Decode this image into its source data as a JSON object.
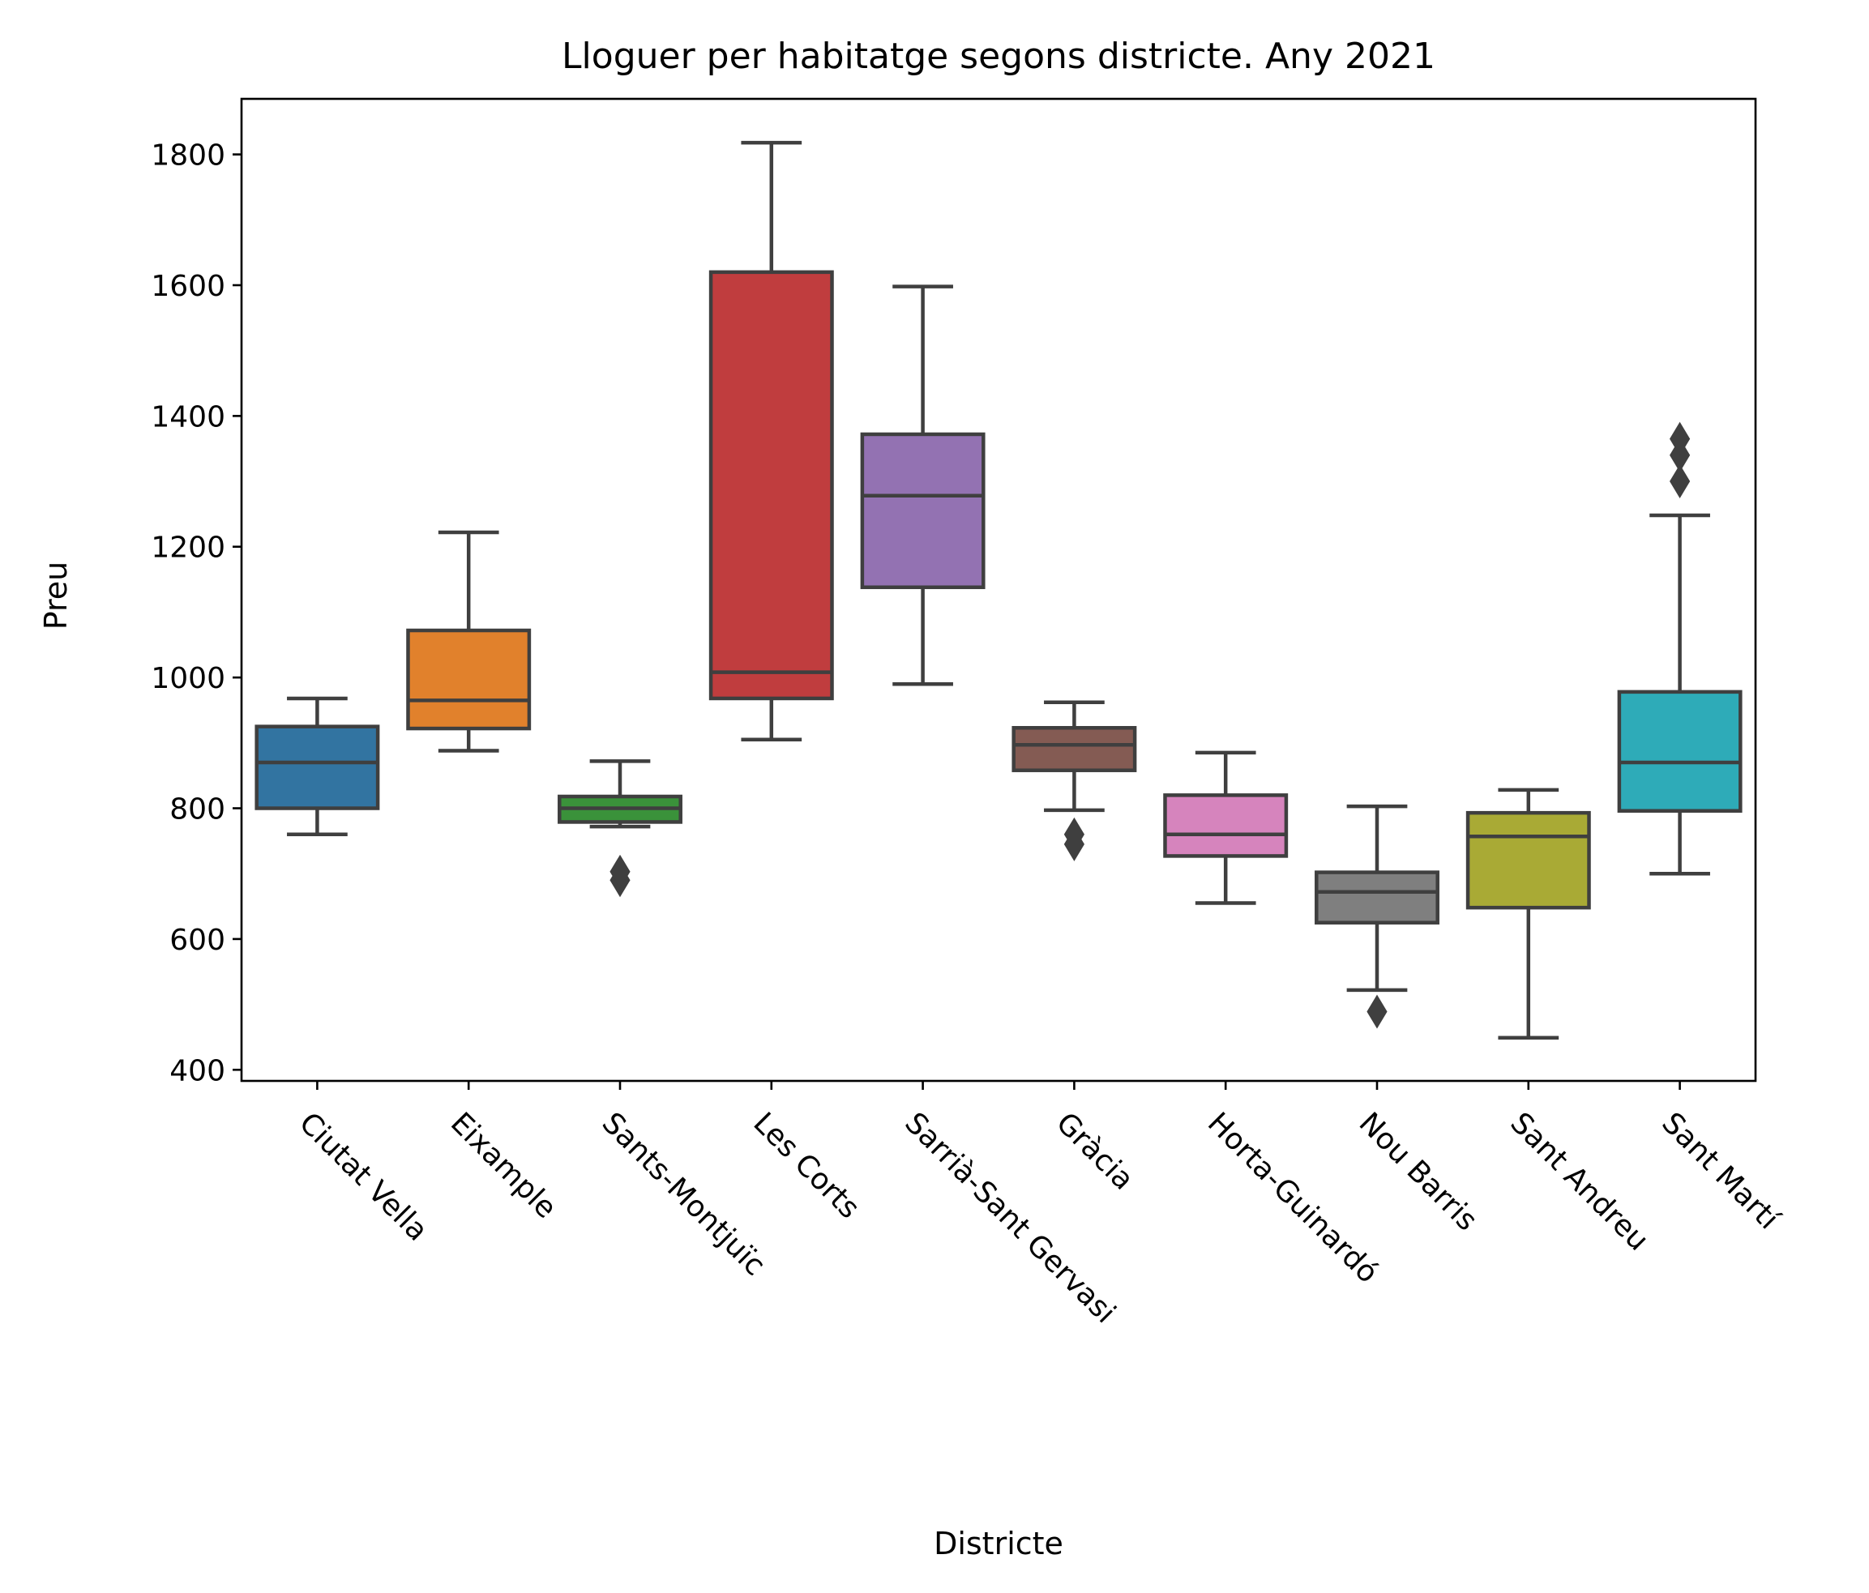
{
  "chart_data": {
    "type": "box",
    "title": "Lloguer per habitatge segons districte. Any 2021",
    "xlabel": "Districte",
    "ylabel": "Preu",
    "ylim": [
      383,
      1885
    ],
    "yticks": [
      400,
      600,
      800,
      1000,
      1200,
      1400,
      1600,
      1800
    ],
    "grid": false,
    "categories": [
      "Ciutat Vella",
      "Eixample",
      "Sants-Montjuïc",
      "Les Corts",
      "Sarrià-Sant Gervasi",
      "Gràcia",
      "Horta-Guinardó",
      "Nou Barris",
      "Sant Andreu",
      "Sant Martí"
    ],
    "series": [
      {
        "category": "Ciutat Vella",
        "whisker_low": 760,
        "q1": 800,
        "median": 870,
        "q3": 925,
        "whisker_high": 968,
        "outliers": [],
        "color": "#3274a1"
      },
      {
        "category": "Eixample",
        "whisker_low": 888,
        "q1": 922,
        "median": 965,
        "q3": 1072,
        "whisker_high": 1222,
        "outliers": [],
        "color": "#e1812c"
      },
      {
        "category": "Sants-Montjuïc",
        "whisker_low": 772,
        "q1": 779,
        "median": 800,
        "q3": 818,
        "whisker_high": 872,
        "outliers": [
          690,
          703
        ],
        "color": "#3a923a"
      },
      {
        "category": "Les Corts",
        "whisker_low": 905,
        "q1": 968,
        "median": 1008,
        "q3": 1620,
        "whisker_high": 1818,
        "outliers": [],
        "color": "#c03d3e"
      },
      {
        "category": "Sarrià-Sant Gervasi",
        "whisker_low": 990,
        "q1": 1138,
        "median": 1278,
        "q3": 1372,
        "whisker_high": 1598,
        "outliers": [],
        "color": "#9372b2"
      },
      {
        "category": "Gràcia",
        "whisker_low": 797,
        "q1": 858,
        "median": 897,
        "q3": 923,
        "whisker_high": 962,
        "outliers": [
          745,
          760
        ],
        "color": "#845b53"
      },
      {
        "category": "Horta-Guinardó",
        "whisker_low": 655,
        "q1": 727,
        "median": 760,
        "q3": 820,
        "whisker_high": 885,
        "outliers": [],
        "color": "#d684bd"
      },
      {
        "category": "Nou Barris",
        "whisker_low": 522,
        "q1": 625,
        "median": 672,
        "q3": 702,
        "whisker_high": 803,
        "outliers": [
          489
        ],
        "color": "#7f7f7f"
      },
      {
        "category": "Sant Andreu",
        "whisker_low": 449,
        "q1": 648,
        "median": 757,
        "q3": 793,
        "whisker_high": 828,
        "outliers": [],
        "color": "#a9aa35"
      },
      {
        "category": "Sant Martí",
        "whisker_low": 700,
        "q1": 796,
        "median": 870,
        "q3": 978,
        "whisker_high": 1248,
        "outliers": [
          1300,
          1340,
          1365
        ],
        "color": "#2eabb8"
      }
    ]
  }
}
